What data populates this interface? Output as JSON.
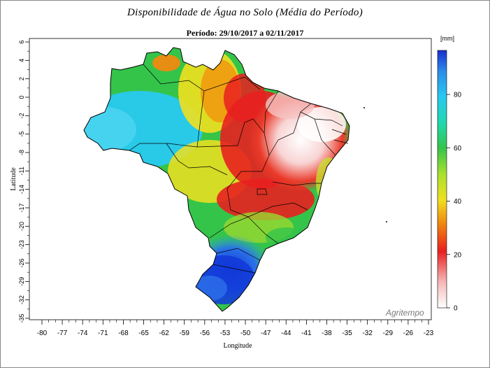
{
  "title": "Disponibilidade de Água no Solo (Média do Período)",
  "subtitle": "Período: 29/10/2017 a 02/11/2017",
  "axes": {
    "x_label": "Longitude",
    "y_label": "Latitude",
    "x_ticks": [
      "-80",
      "-77",
      "-74",
      "-71",
      "-68",
      "-65",
      "-62",
      "-59",
      "-56",
      "-53",
      "-50",
      "-47",
      "-44",
      "-41",
      "-38",
      "-35",
      "-32",
      "-29",
      "-26",
      "-23"
    ],
    "y_ticks": [
      "6",
      "4",
      "2",
      "0",
      "-2",
      "-5",
      "-8",
      "-11",
      "-14",
      "-17",
      "-20",
      "-23",
      "-26",
      "-29",
      "-32",
      "-35"
    ]
  },
  "colorbar": {
    "unit": "[mm]",
    "ticks": [
      "80",
      "60",
      "40",
      "20",
      "0"
    ]
  },
  "watermark": "Agritempo",
  "colors": {
    "high": "#1a3dd8",
    "wet": "#29c9f0",
    "mid": "#35c44a",
    "moderate": "#f0e020",
    "dry": "#e82020",
    "very_dry": "#ffffff"
  }
}
